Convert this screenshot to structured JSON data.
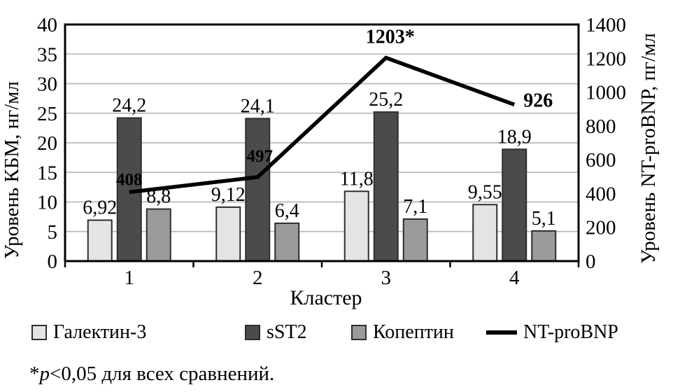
{
  "chart_data": {
    "type": "bar+line",
    "title": "",
    "categories": [
      "1",
      "2",
      "3",
      "4"
    ],
    "xlabel": "Кластер",
    "grid": "horizontal",
    "legend_position": "bottom",
    "left_axis": {
      "label": "Уровень КБМ, нг/мл",
      "range": [
        0,
        40
      ],
      "ticks": [
        0,
        5,
        10,
        15,
        20,
        25,
        30,
        35,
        40
      ]
    },
    "right_axis": {
      "label": "Уровень NT-proBNP, пг/мл",
      "range": [
        0,
        1400
      ],
      "ticks": [
        0,
        200,
        400,
        600,
        800,
        1000,
        1200,
        1400
      ]
    },
    "bar_series": [
      {
        "name": "Галектин-3",
        "color": "#e4e4e4",
        "axis": "left",
        "values": [
          6.92,
          9.12,
          11.8,
          9.55
        ],
        "labels": [
          "6,92",
          "9,12",
          "11,8",
          "9,55"
        ]
      },
      {
        "name": "sST2",
        "color": "#4b4b4d",
        "axis": "left",
        "values": [
          24.2,
          24.1,
          25.2,
          18.9
        ],
        "labels": [
          "24,2",
          "24,1",
          "25,2",
          "18,9"
        ]
      },
      {
        "name": "Копептин",
        "color": "#9b9b9b",
        "axis": "left",
        "values": [
          8.8,
          6.4,
          7.1,
          5.1
        ],
        "labels": [
          "8,8",
          "6,4",
          "7,1",
          "5,1"
        ]
      }
    ],
    "line_series": {
      "name": "NT-proBNP",
      "color": "#000000",
      "axis": "right",
      "values": [
        408,
        497,
        1203,
        926
      ],
      "labels": [
        "408",
        "497",
        "1203*",
        "926"
      ]
    }
  },
  "footnote": {
    "marker": "*",
    "p": "p",
    "rest": "<0,05 для всех сравнений."
  }
}
